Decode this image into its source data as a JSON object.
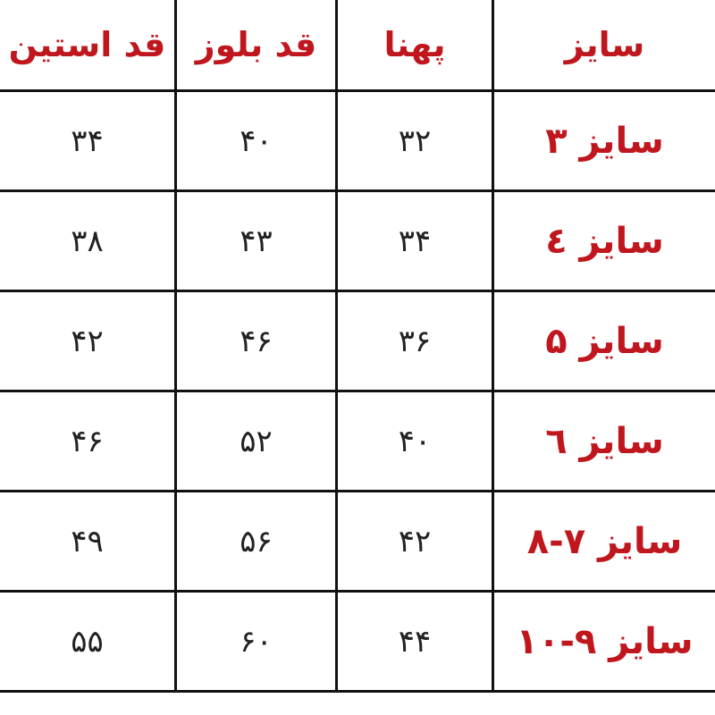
{
  "table": {
    "header": [
      "سایز",
      "پهنا",
      "قد بلوز",
      "قد استین"
    ],
    "rows": [
      [
        "سایز ۳",
        "۳۲",
        "۴۰",
        "۳۴"
      ],
      [
        "سایز ٤",
        "۳۴",
        "۴۳",
        "۳۸"
      ],
      [
        "سایز ۵",
        "۳۶",
        "۴۶",
        "۴۲"
      ],
      [
        "سایز ٦",
        "۴۰",
        "۵۲",
        "۴۶"
      ],
      [
        "سایز ۷-۸",
        "۴۲",
        "۵۶",
        "۴۹"
      ],
      [
        "سایز ۹-۱۰",
        "۴۴",
        "۶۰",
        "۵۵"
      ]
    ]
  }
}
